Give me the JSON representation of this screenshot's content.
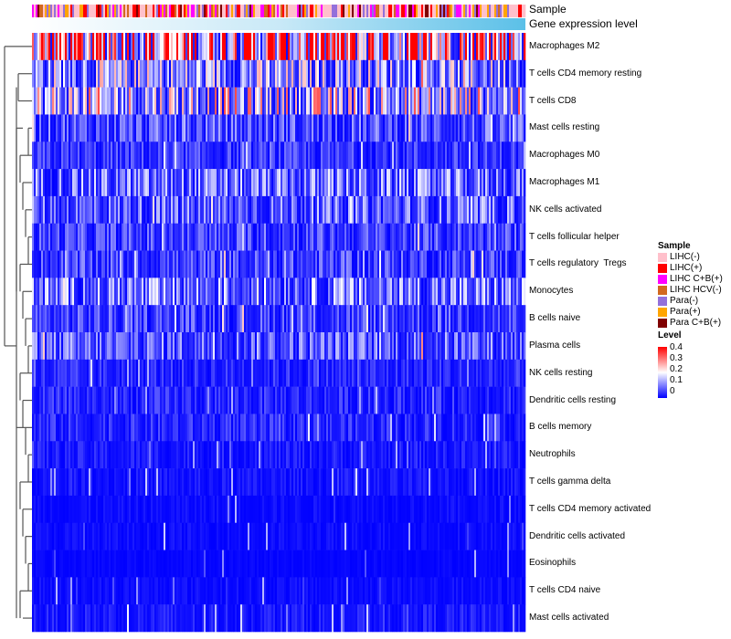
{
  "chart_data": {
    "type": "heatmap",
    "annotations": [
      "Sample",
      "Gene expression level"
    ],
    "rows": [
      {
        "name": "Macrophages M2",
        "mean": 0.3
      },
      {
        "name": "T cells CD4 memory resting",
        "mean": 0.12
      },
      {
        "name": "T cells CD8",
        "mean": 0.15
      },
      {
        "name": "Mast cells resting",
        "mean": 0.06
      },
      {
        "name": "Macrophages M0",
        "mean": 0.04
      },
      {
        "name": "Macrophages M1",
        "mean": 0.08
      },
      {
        "name": "NK cells activated",
        "mean": 0.07
      },
      {
        "name": "T cells follicular helper",
        "mean": 0.05
      },
      {
        "name": "T cells regulatory  Tregs",
        "mean": 0.05
      },
      {
        "name": "Monocytes",
        "mean": 0.09
      },
      {
        "name": "B cells naive",
        "mean": 0.05
      },
      {
        "name": "Plasma cells",
        "mean": 0.07
      },
      {
        "name": "NK cells resting",
        "mean": 0.03
      },
      {
        "name": "Dendritic cells resting",
        "mean": 0.03
      },
      {
        "name": "B cells memory",
        "mean": 0.03
      },
      {
        "name": "Neutrophils",
        "mean": 0.02
      },
      {
        "name": "T cells gamma delta",
        "mean": 0.015
      },
      {
        "name": "T cells CD4 memory activated",
        "mean": 0.01
      },
      {
        "name": "Dendritic cells activated",
        "mean": 0.01
      },
      {
        "name": "Eosinophils",
        "mean": 0.005
      },
      {
        "name": "T cells CD4 naive",
        "mean": 0.01
      },
      {
        "name": "Mast cells activated",
        "mean": 0.02
      }
    ],
    "n_columns": 270,
    "color_scale": {
      "min": 0,
      "max": 0.4,
      "low": "#0000ff",
      "mid": "#ffffff",
      "high": "#ff0000"
    },
    "legend": {
      "sample_title": "Sample",
      "samples": [
        {
          "label": "LIHC(-)",
          "color": "#ffc0cb"
        },
        {
          "label": "LIHC(+)",
          "color": "#ff0000"
        },
        {
          "label": "LIHC C+B(+)",
          "color": "#ff00ff"
        },
        {
          "label": "LIHC HCV(-)",
          "color": "#d2691e"
        },
        {
          "label": "Para(-)",
          "color": "#9370db"
        },
        {
          "label": "Para(+)",
          "color": "#ffa500"
        },
        {
          "label": "Para C+B(+)",
          "color": "#800000"
        }
      ],
      "level_title": "Level",
      "level_ticks": [
        "0.4",
        "0.3",
        "0.2",
        "0.1",
        "0"
      ],
      "placement": "right"
    },
    "expression_color": "#5bc0e8"
  }
}
